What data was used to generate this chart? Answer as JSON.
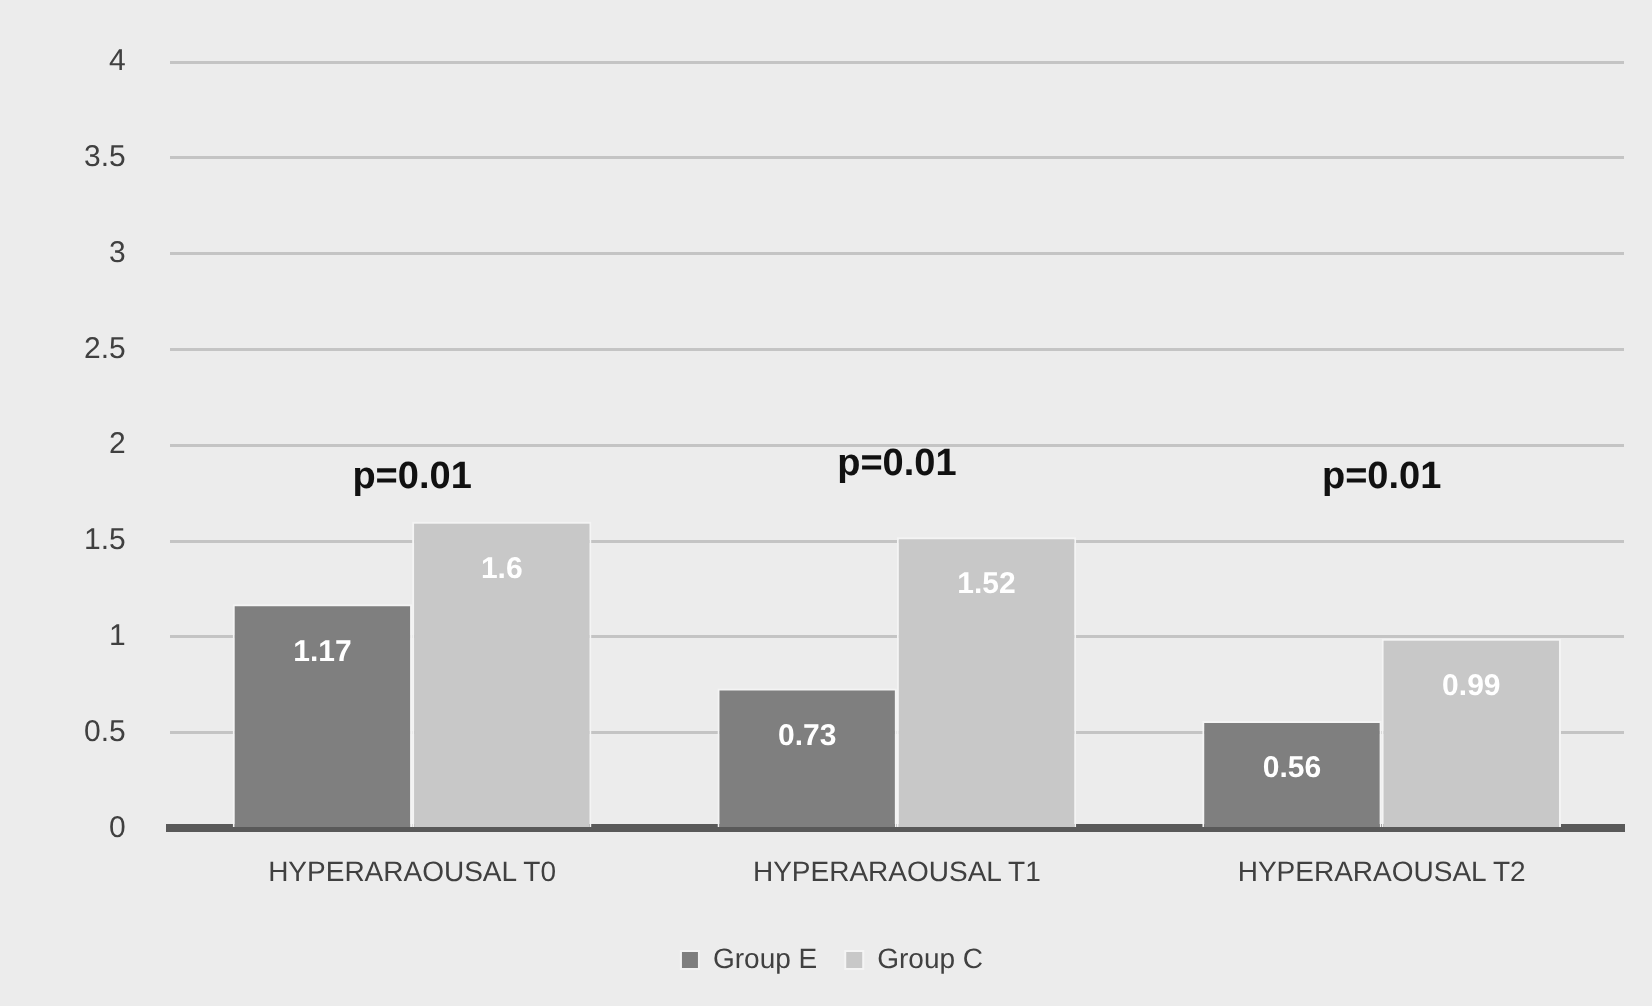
{
  "chart_data": {
    "type": "bar",
    "categories": [
      "HYPERARAOUSAL T0",
      "HYPERARAOUSAL T1",
      "HYPERARAOUSAL T2"
    ],
    "series": [
      {
        "name": "Group E",
        "color": "#7f7f7f",
        "values": [
          1.17,
          0.73,
          0.56
        ]
      },
      {
        "name": "Group C",
        "color": "#c8c8c8",
        "values": [
          1.6,
          1.52,
          0.99
        ]
      }
    ],
    "ylim": [
      0,
      4
    ],
    "yticks": [
      0,
      0.5,
      1,
      1.5,
      2,
      2.5,
      3,
      3.5,
      4
    ],
    "grid": "y",
    "legend": "bottom",
    "data_labels": true,
    "annotations": [
      "p=0.01",
      "p=0.01",
      "p=0.01"
    ]
  }
}
